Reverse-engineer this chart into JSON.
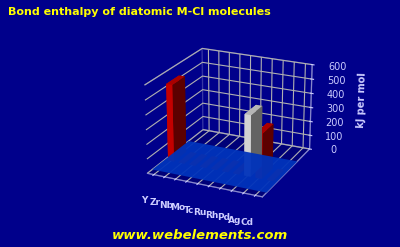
{
  "title": "Bond enthalpy of diatomic M-Cl molecules",
  "ylabel": "kJ per mol",
  "website": "www.webelements.com",
  "elements": [
    "Y",
    "Zr",
    "Nb",
    "Mo",
    "Tc",
    "Ru",
    "Rh",
    "Pd",
    "Ag",
    "Cd"
  ],
  "values": [
    535,
    0,
    0,
    0,
    0,
    0,
    0,
    420,
    310,
    0
  ],
  "bar_colors": [
    "#dd0000",
    "#cc0000",
    "#cc0000",
    "#cc0000",
    "#cc0000",
    "#cc0000",
    "#cc0000",
    "#eeeeee",
    "#dd0000",
    "#cc0000"
  ],
  "ylim": [
    0,
    600
  ],
  "yticks": [
    0,
    100,
    200,
    300,
    400,
    500,
    600
  ],
  "bg_color": "#00008b",
  "floor_color": "#0033bb",
  "title_color": "#ffff00",
  "ylabel_color": "#ccccff",
  "tick_color": "#ccccff",
  "grid_color": "#8888cc",
  "website_color": "#ffff00",
  "dot_color": "#dd0000",
  "wall_color": "#000066"
}
